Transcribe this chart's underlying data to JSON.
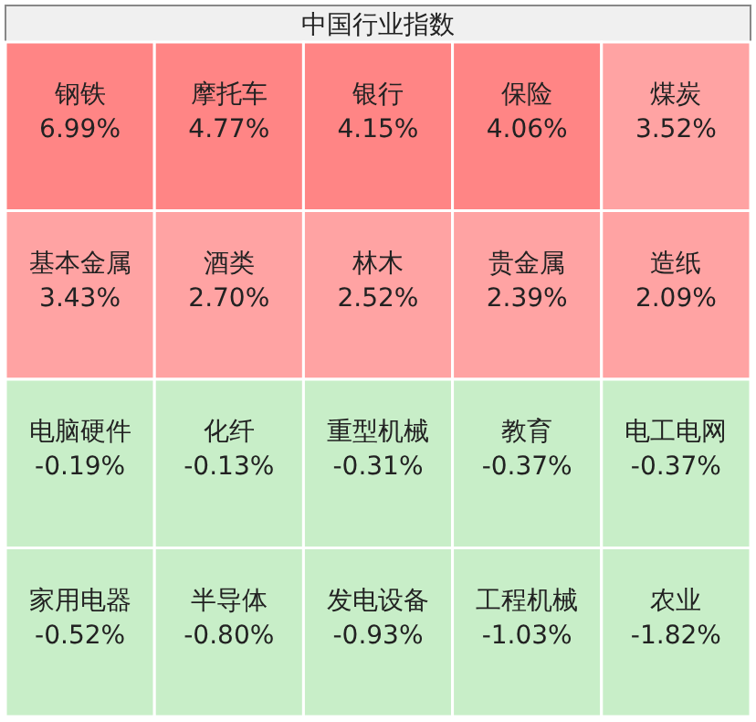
{
  "chart_data": {
    "type": "other",
    "title": "中国行业指数",
    "categories": [
      "钢铁",
      "摩托车",
      "银行",
      "保险",
      "煤炭",
      "基本金属",
      "酒类",
      "林木",
      "贵金属",
      "造纸",
      "电脑硬件",
      "化纤",
      "重型机械",
      "教育",
      "电工电网",
      "家用电器",
      "半导体",
      "发电设备",
      "工程机械",
      "农业"
    ],
    "values": [
      6.99,
      4.77,
      4.15,
      4.06,
      3.52,
      3.43,
      2.7,
      2.52,
      2.39,
      2.09,
      -0.19,
      -0.13,
      -0.31,
      -0.37,
      -0.37,
      -0.52,
      -0.8,
      -0.93,
      -1.03,
      -1.82
    ],
    "value_labels": [
      "6.99%",
      "4.77%",
      "4.15%",
      "4.06%",
      "3.52%",
      "3.43%",
      "2.70%",
      "2.52%",
      "2.39%",
      "2.09%",
      "-0.19%",
      "-0.13%",
      "-0.31%",
      "-0.37%",
      "-0.37%",
      "-0.52%",
      "-0.80%",
      "-0.93%",
      "-1.03%",
      "-1.82%"
    ],
    "colors": [
      "#ff8585",
      "#ff8585",
      "#ff8585",
      "#ff8585",
      "#ffa3a3",
      "#ffa3a3",
      "#ffa3a3",
      "#ffa3a3",
      "#ffa3a3",
      "#ffa3a3",
      "#c8eec8",
      "#c8eec8",
      "#c8eec8",
      "#c8eec8",
      "#c8eec8",
      "#c8eec8",
      "#c8eec8",
      "#c8eec8",
      "#c8eec8",
      "#c8eec8"
    ]
  }
}
